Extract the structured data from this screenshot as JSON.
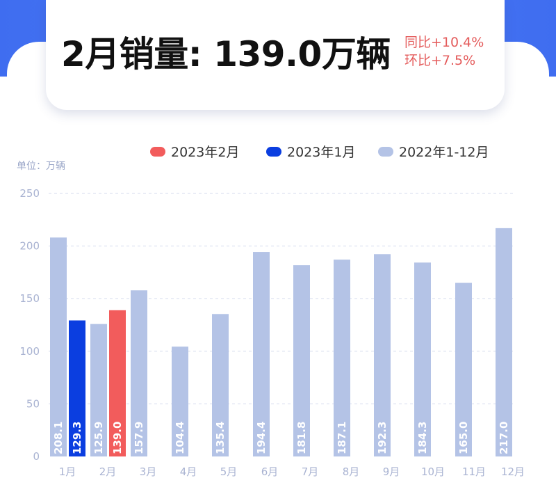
{
  "headline": {
    "title": "2月销量: 139.0万辆",
    "yoy": "同比+10.4%",
    "mom": "环比+7.5%"
  },
  "unit_label": "单位：万辆",
  "colors": {
    "feb2023": "#f25c5c",
    "jan2023": "#0b3ee0",
    "year2022": "#b4c3e6",
    "header": "#3f6df0",
    "headline_change": "#e45b5b"
  },
  "legend": [
    {
      "label": "2023年2月",
      "color": "#f25c5c"
    },
    {
      "label": "2023年1月",
      "color": "#0b3ee0"
    },
    {
      "label": "2022年1-12月",
      "color": "#b4c3e6"
    }
  ],
  "chart_data": {
    "type": "bar",
    "categories": [
      "1月",
      "2月",
      "3月",
      "4月",
      "5月",
      "6月",
      "7月",
      "8月",
      "9月",
      "10月",
      "11月",
      "12月"
    ],
    "series": [
      {
        "name": "2022年1-12月",
        "values": [
          208.1,
          125.9,
          157.9,
          104.4,
          135.4,
          194.4,
          181.8,
          187.1,
          192.3,
          184.3,
          165.0,
          217.0
        ],
        "color": "#b4c3e6"
      },
      {
        "name": "2023年1月",
        "values": [
          129.3,
          null,
          null,
          null,
          null,
          null,
          null,
          null,
          null,
          null,
          null,
          null
        ],
        "color": "#0b3ee0"
      },
      {
        "name": "2023年2月",
        "values": [
          null,
          139.0,
          null,
          null,
          null,
          null,
          null,
          null,
          null,
          null,
          null,
          null
        ],
        "color": "#f25c5c"
      }
    ],
    "value_labels": {
      "year2022": [
        "208.1",
        "125.9",
        "157.9",
        "104.4",
        "135.4",
        "194.4",
        "181.8",
        "187.1",
        "192.3",
        "184.3",
        "165.0",
        "217.0"
      ],
      "jan2023": "129.3",
      "feb2023": "139.0"
    },
    "y_ticks": [
      "0",
      "50",
      "100",
      "150",
      "200",
      "250"
    ],
    "ylim": [
      0,
      250
    ],
    "grid": true,
    "legend_position": "top"
  }
}
